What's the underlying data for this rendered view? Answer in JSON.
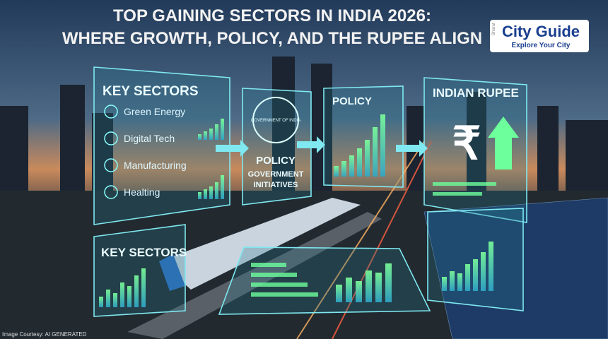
{
  "header": {
    "title_lines": [
      "TOP GAINING SECTORS IN INDIA 2026:",
      "WHERE GROWTH, POLICY, AND THE RUPEE ALIGN"
    ]
  },
  "logo": {
    "brand": "City Guide",
    "tagline": "Explore Your City",
    "side": "Bharat"
  },
  "panels": {
    "key_sectors": {
      "title": "KEY SECTORS",
      "items": [
        "Green Energy",
        "Digital Tech",
        "Manufacturing",
        "Healting"
      ]
    },
    "policy_seal": {
      "seal": "GOVERNMENT OF INDIA",
      "title": "POLICY",
      "subtitle_lines": [
        "GOVERNMENT",
        "INITIATIVES"
      ]
    },
    "policy_chart": {
      "title": "POLICY"
    },
    "rupee": {
      "title": "INDIAN RUPEE",
      "symbol": "₹"
    },
    "key_sectors_lower": {
      "title": "KEY SECTORS"
    }
  },
  "credit": "Image Courtesy: AI GENERATED"
}
